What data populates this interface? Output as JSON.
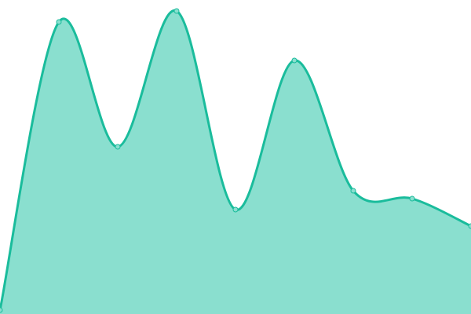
{
  "chart_data": {
    "type": "area",
    "title": "",
    "xlabel": "",
    "ylabel": "",
    "x": [
      0,
      1,
      2,
      3,
      4,
      5,
      6,
      7,
      8
    ],
    "values": [
      5,
      372,
      213,
      386,
      133,
      323,
      157,
      147,
      112
    ],
    "xlim": [
      0,
      8
    ],
    "ylim": [
      0,
      400
    ],
    "grid": false,
    "smooth": true,
    "colors": {
      "line": "#1abc9c",
      "fill": "#8adfcf",
      "point_fill": "#8adfcf"
    }
  }
}
